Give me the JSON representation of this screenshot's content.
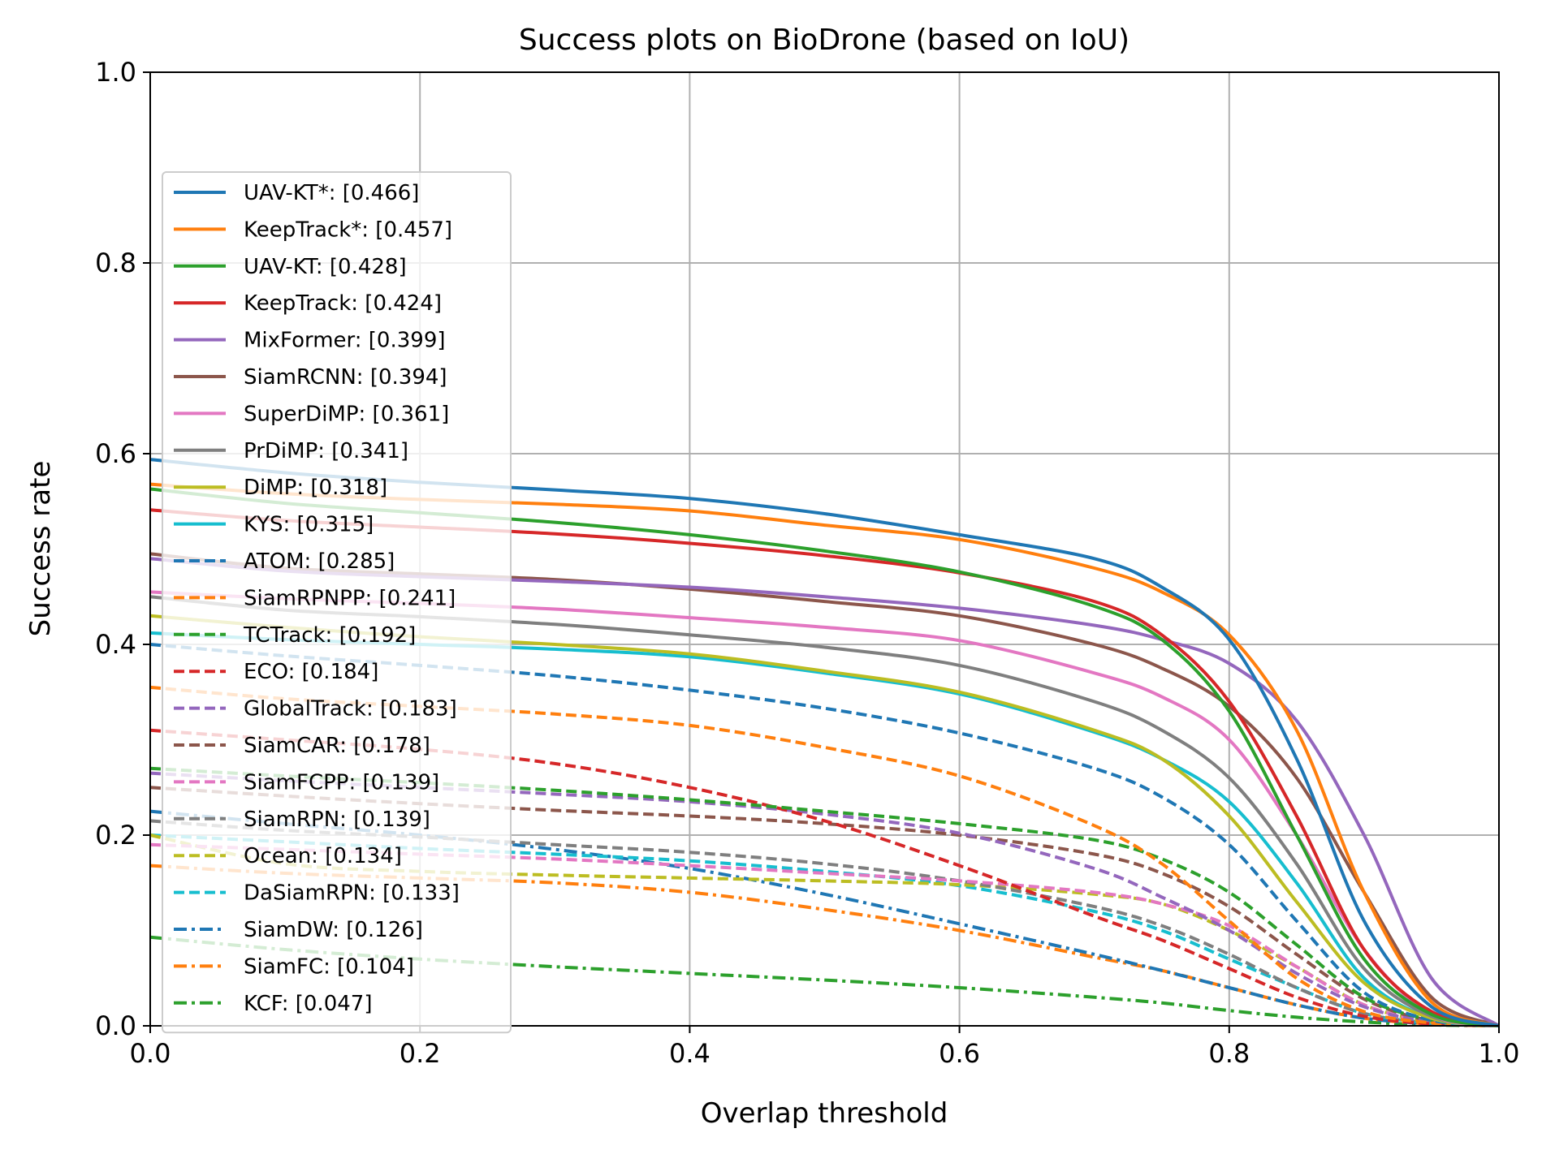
{
  "chart_data": {
    "type": "line",
    "title": "Success plots on BioDrone (based on IoU)",
    "xlabel": "Overlap threshold",
    "ylabel": "Success rate",
    "xlim": [
      0.0,
      1.0
    ],
    "ylim": [
      0.0,
      1.0
    ],
    "xticks": [
      "0.0",
      "0.2",
      "0.4",
      "0.6",
      "0.8",
      "1.0"
    ],
    "yticks": [
      "0.0",
      "0.2",
      "0.4",
      "0.6",
      "0.8",
      "1.0"
    ],
    "grid": true,
    "legend_position": "upper-left",
    "x": [
      0,
      0.1,
      0.2,
      0.3,
      0.4,
      0.5,
      0.6,
      0.7,
      0.75,
      0.8,
      0.85,
      0.9,
      0.95,
      1.0
    ],
    "series": [
      {
        "name": "UAV-KT*: [0.466]",
        "color": "#1f77b4",
        "dash": "solid",
        "values": [
          0.594,
          0.58,
          0.57,
          0.562,
          0.553,
          0.537,
          0.515,
          0.49,
          0.46,
          0.405,
          0.28,
          0.11,
          0.02,
          0.0
        ]
      },
      {
        "name": "KeepTrack*: [0.457]",
        "color": "#ff7f0e",
        "dash": "solid",
        "values": [
          0.568,
          0.558,
          0.552,
          0.547,
          0.54,
          0.525,
          0.51,
          0.48,
          0.455,
          0.41,
          0.31,
          0.14,
          0.025,
          0.0
        ]
      },
      {
        "name": "UAV-KT: [0.428]",
        "color": "#2ca02c",
        "dash": "solid",
        "values": [
          0.563,
          0.548,
          0.538,
          0.528,
          0.515,
          0.498,
          0.476,
          0.44,
          0.405,
          0.33,
          0.2,
          0.07,
          0.012,
          0.0
        ]
      },
      {
        "name": "KeepTrack: [0.424]",
        "color": "#d62728",
        "dash": "solid",
        "values": [
          0.541,
          0.53,
          0.523,
          0.516,
          0.506,
          0.493,
          0.475,
          0.445,
          0.41,
          0.34,
          0.22,
          0.08,
          0.015,
          0.0
        ]
      },
      {
        "name": "MixFormer: [0.399]",
        "color": "#9467bd",
        "dash": "solid",
        "values": [
          0.49,
          0.477,
          0.471,
          0.466,
          0.46,
          0.45,
          0.438,
          0.42,
          0.405,
          0.38,
          0.32,
          0.2,
          0.05,
          0.0
        ]
      },
      {
        "name": "SiamRCNN: [0.394]",
        "color": "#8c564b",
        "dash": "solid",
        "values": [
          0.495,
          0.48,
          0.474,
          0.468,
          0.458,
          0.445,
          0.43,
          0.4,
          0.375,
          0.335,
          0.26,
          0.14,
          0.03,
          0.0
        ]
      },
      {
        "name": "SuperDiMP: [0.361]",
        "color": "#e377c2",
        "dash": "solid",
        "values": [
          0.455,
          0.448,
          0.443,
          0.437,
          0.428,
          0.418,
          0.404,
          0.37,
          0.345,
          0.3,
          0.2,
          0.08,
          0.012,
          0.0
        ]
      },
      {
        "name": "PrDiMP: [0.341]",
        "color": "#7f7f7f",
        "dash": "solid",
        "values": [
          0.45,
          0.436,
          0.429,
          0.421,
          0.41,
          0.397,
          0.378,
          0.34,
          0.31,
          0.26,
          0.17,
          0.06,
          0.01,
          0.0
        ]
      },
      {
        "name": "DiMP: [0.318]",
        "color": "#bcbd22",
        "dash": "solid",
        "values": [
          0.43,
          0.418,
          0.408,
          0.4,
          0.39,
          0.372,
          0.35,
          0.31,
          0.28,
          0.22,
          0.13,
          0.045,
          0.008,
          0.0
        ]
      },
      {
        "name": "KYS: [0.315]",
        "color": "#17becf",
        "dash": "solid",
        "values": [
          0.412,
          0.405,
          0.4,
          0.395,
          0.387,
          0.37,
          0.348,
          0.308,
          0.28,
          0.235,
          0.15,
          0.05,
          0.008,
          0.0
        ]
      },
      {
        "name": "ATOM: [0.285]",
        "color": "#1f77b4",
        "dash": "dashed",
        "values": [
          0.4,
          0.388,
          0.378,
          0.367,
          0.352,
          0.333,
          0.307,
          0.27,
          0.24,
          0.19,
          0.11,
          0.035,
          0.006,
          0.0
        ]
      },
      {
        "name": "SiamRPNPP: [0.241]",
        "color": "#ff7f0e",
        "dash": "dashed",
        "values": [
          0.355,
          0.343,
          0.335,
          0.327,
          0.315,
          0.292,
          0.262,
          0.21,
          0.17,
          0.11,
          0.05,
          0.015,
          0.003,
          0.0
        ]
      },
      {
        "name": "TCTrack: [0.192]",
        "color": "#2ca02c",
        "dash": "dashed",
        "values": [
          0.27,
          0.262,
          0.255,
          0.247,
          0.237,
          0.225,
          0.212,
          0.195,
          0.175,
          0.14,
          0.085,
          0.03,
          0.006,
          0.0
        ]
      },
      {
        "name": "ECO: [0.184]",
        "color": "#d62728",
        "dash": "dashed",
        "values": [
          0.31,
          0.3,
          0.29,
          0.275,
          0.25,
          0.215,
          0.168,
          0.115,
          0.09,
          0.06,
          0.03,
          0.01,
          0.002,
          0.0
        ]
      },
      {
        "name": "GlobalTrack: [0.183]",
        "color": "#9467bd",
        "dash": "dashed",
        "values": [
          0.265,
          0.257,
          0.25,
          0.243,
          0.235,
          0.222,
          0.202,
          0.165,
          0.135,
          0.1,
          0.055,
          0.02,
          0.004,
          0.0
        ]
      },
      {
        "name": "SiamCAR: [0.178]",
        "color": "#8c564b",
        "dash": "dashed",
        "values": [
          0.25,
          0.241,
          0.233,
          0.226,
          0.22,
          0.212,
          0.2,
          0.18,
          0.16,
          0.125,
          0.075,
          0.028,
          0.005,
          0.0
        ]
      },
      {
        "name": "SiamFCPP: [0.139]",
        "color": "#e377c2",
        "dash": "dashed",
        "values": [
          0.19,
          0.185,
          0.18,
          0.175,
          0.168,
          0.16,
          0.152,
          0.14,
          0.128,
          0.105,
          0.062,
          0.022,
          0.004,
          0.0
        ]
      },
      {
        "name": "SiamRPN: [0.139]",
        "color": "#7f7f7f",
        "dash": "dashed",
        "values": [
          0.215,
          0.205,
          0.198,
          0.19,
          0.182,
          0.17,
          0.152,
          0.125,
          0.105,
          0.075,
          0.04,
          0.013,
          0.003,
          0.0
        ]
      },
      {
        "name": "Ocean: [0.134]",
        "color": "#bcbd22",
        "dash": "dashed",
        "values": [
          0.2,
          0.17,
          0.162,
          0.158,
          0.155,
          0.152,
          0.148,
          0.138,
          0.128,
          0.1,
          0.062,
          0.022,
          0.004,
          0.0
        ]
      },
      {
        "name": "DaSiamRPN: [0.133]",
        "color": "#17becf",
        "dash": "dashed",
        "values": [
          0.2,
          0.193,
          0.186,
          0.18,
          0.173,
          0.162,
          0.147,
          0.12,
          0.1,
          0.07,
          0.04,
          0.013,
          0.003,
          0.0
        ]
      },
      {
        "name": "SiamDW: [0.126]",
        "color": "#1f77b4",
        "dash": "dashdot",
        "values": [
          0.225,
          0.212,
          0.2,
          0.185,
          0.165,
          0.138,
          0.107,
          0.075,
          0.058,
          0.04,
          0.022,
          0.008,
          0.002,
          0.0
        ]
      },
      {
        "name": "SiamFC: [0.104]",
        "color": "#ff7f0e",
        "dash": "dashdot",
        "values": [
          0.168,
          0.16,
          0.155,
          0.15,
          0.14,
          0.122,
          0.1,
          0.072,
          0.058,
          0.04,
          0.022,
          0.008,
          0.002,
          0.0
        ]
      },
      {
        "name": "KCF: [0.047]",
        "color": "#2ca02c",
        "dash": "dashdot",
        "values": [
          0.093,
          0.08,
          0.07,
          0.062,
          0.055,
          0.048,
          0.04,
          0.03,
          0.024,
          0.016,
          0.009,
          0.004,
          0.001,
          0.0
        ]
      }
    ]
  }
}
